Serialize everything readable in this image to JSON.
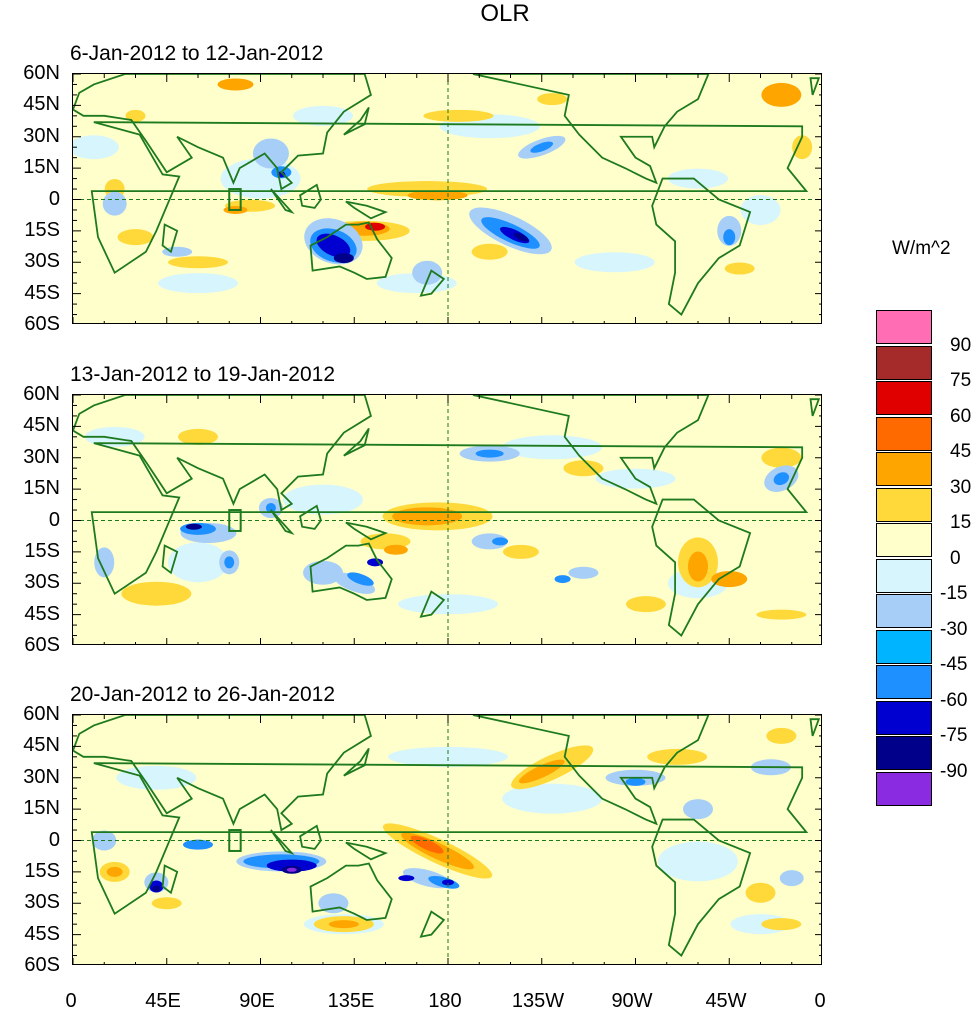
{
  "title": "OLR",
  "units": "W/m^2",
  "panels": [
    {
      "label": "6-Jan-2012 to 12-Jan-2012"
    },
    {
      "label": "13-Jan-2012 to 19-Jan-2012"
    },
    {
      "label": "20-Jan-2012 to 26-Jan-2012"
    }
  ],
  "lat_labels": [
    "60N",
    "45N",
    "30N",
    "15N",
    "0",
    "15S",
    "30S",
    "45S",
    "60S"
  ],
  "lon_labels": [
    "0",
    "45E",
    "90E",
    "135E",
    "180",
    "135W",
    "90W",
    "45W",
    "0"
  ],
  "colorbar": {
    "colors": [
      "#ff6eb4",
      "#a52a2a",
      "#e00000",
      "#ff6a00",
      "#ffa500",
      "#ffd93a",
      "#ffffcc",
      "#d7f5fc",
      "#a6cef7",
      "#00b4ff",
      "#1e90ff",
      "#0000d0",
      "#00008b",
      "#8a2be2"
    ],
    "labels": [
      "90",
      "75",
      "60",
      "45",
      "30",
      "15",
      "0",
      "-15",
      "-30",
      "-45",
      "-60",
      "-75",
      "-90"
    ]
  }
}
